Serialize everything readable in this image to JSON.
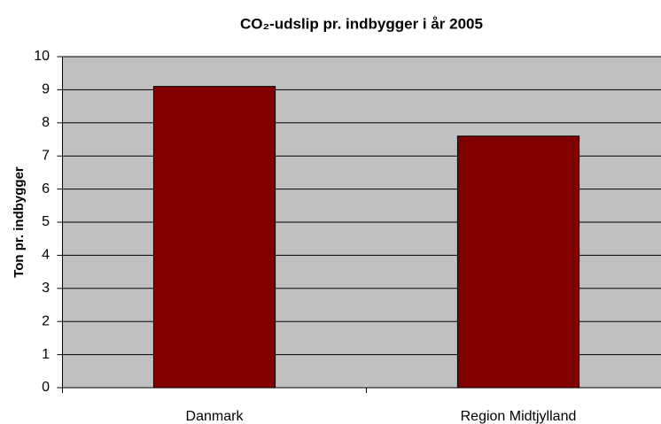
{
  "chart_data": {
    "type": "bar",
    "title": "CO₂-udslip pr. indbygger i år 2005",
    "y_label": "Ton pr. indbygger",
    "categories": [
      "Danmark",
      "Region Midtjylland"
    ],
    "values": [
      9.1,
      7.6
    ],
    "color": "#800000",
    "ylim": [
      0,
      10
    ],
    "yticks": [
      0,
      1,
      2,
      3,
      4,
      5,
      6,
      7,
      8,
      9,
      10
    ],
    "grid": true
  }
}
